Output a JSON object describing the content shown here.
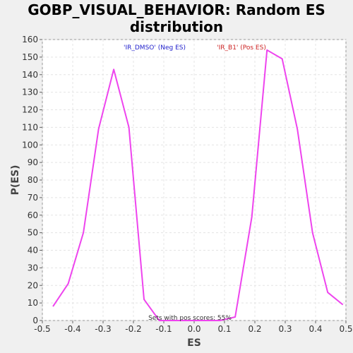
{
  "chart_data": {
    "type": "line",
    "title": "GOBP_VISUAL_BEHAVIOR: Random ES\ndistribution",
    "xlabel": "ES",
    "ylabel": "P(ES)",
    "xlim": [
      -0.5,
      0.5
    ],
    "ylim": [
      0,
      160
    ],
    "x_ticks": [
      -0.5,
      -0.4,
      -0.3,
      -0.2,
      -0.1,
      0.0,
      0.1,
      0.2,
      0.3,
      0.4,
      0.5
    ],
    "x_tick_labels": [
      "-0.5",
      "-0.4",
      "-0.3",
      "-0.2",
      "-0.1",
      "0.0",
      "0.1",
      "0.2",
      "0.3",
      "0.4",
      "0.5"
    ],
    "y_ticks": [
      0,
      10,
      20,
      30,
      40,
      50,
      60,
      70,
      80,
      90,
      100,
      110,
      120,
      130,
      140,
      150,
      160
    ],
    "y_tick_labels": [
      "0",
      "10",
      "20",
      "30",
      "40",
      "50",
      "60",
      "70",
      "80",
      "90",
      "100",
      "110",
      "120",
      "130",
      "140",
      "150",
      "160"
    ],
    "grid": true,
    "series": [
      {
        "color": "#ee44ee",
        "x": [
          -0.465,
          -0.415,
          -0.365,
          -0.315,
          -0.265,
          -0.215,
          -0.165,
          -0.115,
          -0.065,
          -0.015,
          0.035,
          0.085,
          0.135,
          0.19,
          0.24,
          0.29,
          0.34,
          0.39,
          0.44,
          0.49
        ],
        "y": [
          8,
          21,
          50,
          109,
          143,
          110,
          12,
          0,
          0,
          0,
          0,
          0,
          2,
          59,
          154,
          149,
          109,
          50,
          16,
          9
        ]
      }
    ],
    "annotations": [
      {
        "text": "'IR_DMSO' (Neg ES)",
        "color": "#2222cc"
      },
      {
        "text": "'IR_B1' (Pos ES)",
        "color": "#cc2222"
      },
      {
        "text": "Sets with pos scores: 55%",
        "color": "#333333"
      }
    ]
  }
}
